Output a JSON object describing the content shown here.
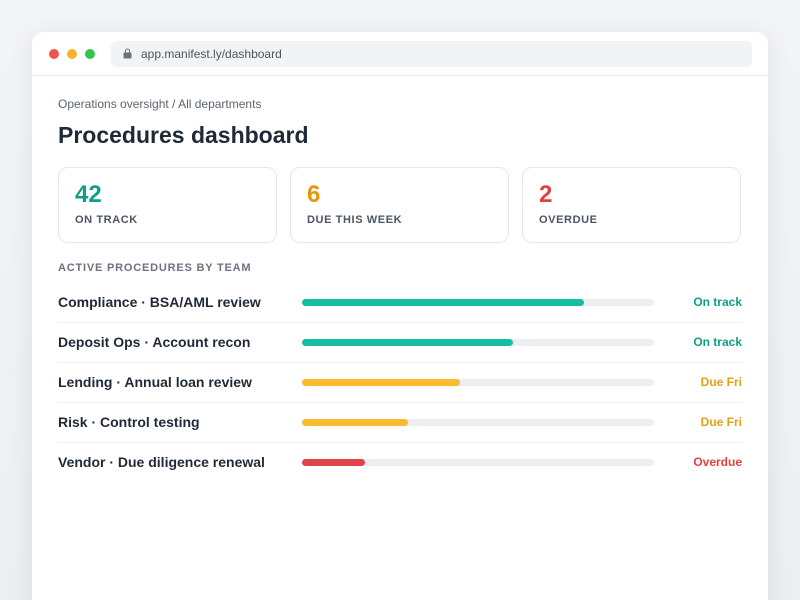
{
  "browser": {
    "url": "app.manifest.ly/dashboard"
  },
  "breadcrumb": "Operations oversight / All departments",
  "title": "Procedures dashboard",
  "stats": [
    {
      "value": 42,
      "label": "ON TRACK",
      "color": "#0f9f86"
    },
    {
      "value": 6,
      "label": "DUE THIS WEEK",
      "color": "#e6960c"
    },
    {
      "value": 2,
      "label": "OVERDUE",
      "color": "#e0413f"
    }
  ],
  "section_title": "ACTIVE PROCEDURES BY TEAM",
  "procedures": [
    {
      "name": "Compliance · BSA/AML review",
      "progress": 80,
      "status": "On track",
      "color": "#14bfa0",
      "status_color": "#0f9f86"
    },
    {
      "name": "Deposit Ops · Account recon",
      "progress": 60,
      "status": "On track",
      "color": "#14bfa0",
      "status_color": "#0f9f86"
    },
    {
      "name": "Lending · Annual loan review",
      "progress": 45,
      "status": "Due Fri",
      "color": "#fbbb2e",
      "status_color": "#e6a010"
    },
    {
      "name": "Risk · Control testing",
      "progress": 30,
      "status": "Due Fri",
      "color": "#fbbb2e",
      "status_color": "#e6a010"
    },
    {
      "name": "Vendor · Due diligence renewal",
      "progress": 18,
      "status": "Overdue",
      "color": "#e0434a",
      "status_color": "#e0413f"
    }
  ]
}
